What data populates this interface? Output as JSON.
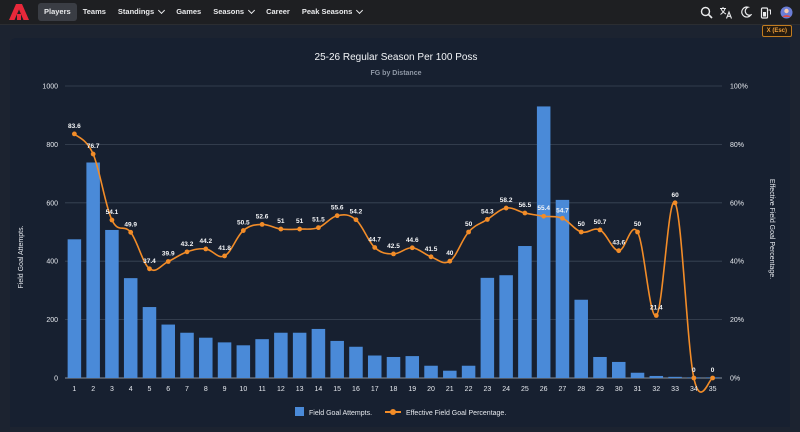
{
  "nav": {
    "items": [
      {
        "label": "Players",
        "active": true,
        "dropdown": false
      },
      {
        "label": "Teams",
        "active": false,
        "dropdown": false
      },
      {
        "label": "Standings",
        "active": false,
        "dropdown": true
      },
      {
        "label": "Games",
        "active": false,
        "dropdown": false
      },
      {
        "label": "Seasons",
        "active": false,
        "dropdown": true
      },
      {
        "label": "Career",
        "active": false,
        "dropdown": false
      },
      {
        "label": "Peak Seasons",
        "active": false,
        "dropdown": true
      }
    ],
    "icons": [
      "search-icon",
      "translate-icon",
      "dark-mode-icon",
      "battery-icon",
      "avatar"
    ]
  },
  "esc_button": {
    "label": "X (Esc)"
  },
  "colors": {
    "bar": "#4a8ad8",
    "line": "#f28c28",
    "accent": "#c27c1f"
  },
  "chart_data": {
    "type": "bar",
    "title": "25-26 Regular Season Per 100 Poss",
    "subtitle": "FG by Distance",
    "xlabel": "",
    "ylabel": "Field Goal Attempts.",
    "ylabel_right": "Effective Field Goal Percentage.",
    "categories": [
      1,
      2,
      3,
      4,
      5,
      6,
      7,
      8,
      9,
      10,
      11,
      12,
      13,
      14,
      15,
      16,
      17,
      18,
      19,
      20,
      21,
      22,
      23,
      24,
      25,
      26,
      27,
      28,
      29,
      30,
      31,
      32,
      33,
      34,
      35
    ],
    "ylim": [
      0,
      1000
    ],
    "yticks": [
      "0",
      "200",
      "400",
      "600",
      "800",
      "1000"
    ],
    "ylim_right": [
      0,
      100
    ],
    "yticks_right": [
      "0%",
      "20%",
      "40%",
      "60%",
      "80%",
      "100%"
    ],
    "grid": true,
    "legend_position": "bottom",
    "series": [
      {
        "name": "Field Goal Attempts.",
        "type": "bar",
        "values": [
          475,
          738,
          507,
          342,
          243,
          183,
          155,
          138,
          122,
          112,
          133,
          155,
          155,
          168,
          127,
          107,
          77,
          72,
          75,
          42,
          25,
          42,
          343,
          352,
          452,
          930,
          610,
          268,
          72,
          55,
          18,
          7,
          4,
          2,
          2
        ]
      },
      {
        "name": "Effective Field Goal Percentage.",
        "type": "line",
        "values": [
          83.6,
          76.7,
          54.1,
          49.9,
          37.4,
          39.9,
          43.2,
          44.2,
          41.8,
          50.5,
          52.6,
          51,
          51,
          51.5,
          55.6,
          54.2,
          44.7,
          42.5,
          44.6,
          41.5,
          40,
          50,
          54.3,
          58.2,
          56.5,
          55.4,
          54.7,
          50,
          50.7,
          43.6,
          50,
          21.4,
          60,
          0,
          0
        ],
        "labels": [
          "83.6",
          "76.7",
          "54.1",
          "49.9",
          "37.4",
          "39.9",
          "43.2",
          "44.2",
          "41.8",
          "50.5",
          "52.6",
          "51",
          "51",
          "51.5",
          "55.6",
          "54.2",
          "44.7",
          "42.5",
          "44.6",
          "41.5",
          "40",
          "50",
          "54.3",
          "58.2",
          "56.5",
          "55.4",
          "54.7",
          "50",
          "50.7",
          "43.6",
          "50",
          "21.4",
          "60",
          "0",
          "0"
        ]
      }
    ]
  }
}
